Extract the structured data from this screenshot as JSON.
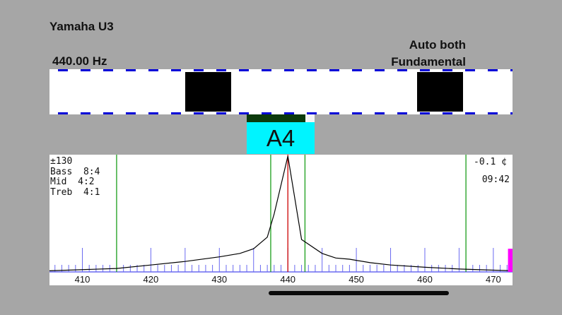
{
  "header": {
    "instrument": "Yamaha U3",
    "reference": "440.00 Hz",
    "mode_line1": "Auto both",
    "mode_line2": "Fundamental"
  },
  "note": {
    "name": "A4"
  },
  "spectrum": {
    "range": "±130",
    "bass": "Bass  8:4",
    "mid": "Mid  4:2",
    "treb": "Treb  4:1",
    "cents": "-0.1 ¢",
    "time": "09:42"
  },
  "chart_data": {
    "type": "line",
    "xlim": [
      405.2,
      472.8
    ],
    "ylim": [
      0,
      1
    ],
    "x_ticks": [
      410,
      420,
      430,
      440,
      450,
      460,
      470
    ],
    "series": [
      {
        "x": [
          405.2,
          415,
          420,
          425,
          430,
          433,
          435,
          437,
          438,
          440,
          442,
          445,
          447,
          449,
          452,
          455,
          460,
          465,
          470,
          472.8
        ],
        "values": [
          0.01,
          0.03,
          0.06,
          0.09,
          0.13,
          0.16,
          0.2,
          0.3,
          0.5,
          1.0,
          0.28,
          0.16,
          0.12,
          0.11,
          0.08,
          0.06,
          0.04,
          0.025,
          0.015,
          0.01
        ]
      }
    ],
    "green_markers": [
      415,
      437.5,
      442.5,
      466
    ],
    "red_marker": 440,
    "magenta_bar": {
      "x": 472.5,
      "value": 0.2
    }
  },
  "colors": {
    "background": "#a6a6a6",
    "note_box": "#00f4ff",
    "strobe_dash": "#0000d8",
    "green": "#1a9e1a",
    "red": "#cc0000",
    "magenta": "#ff00ff",
    "blue_tick": "#6a6af0"
  }
}
